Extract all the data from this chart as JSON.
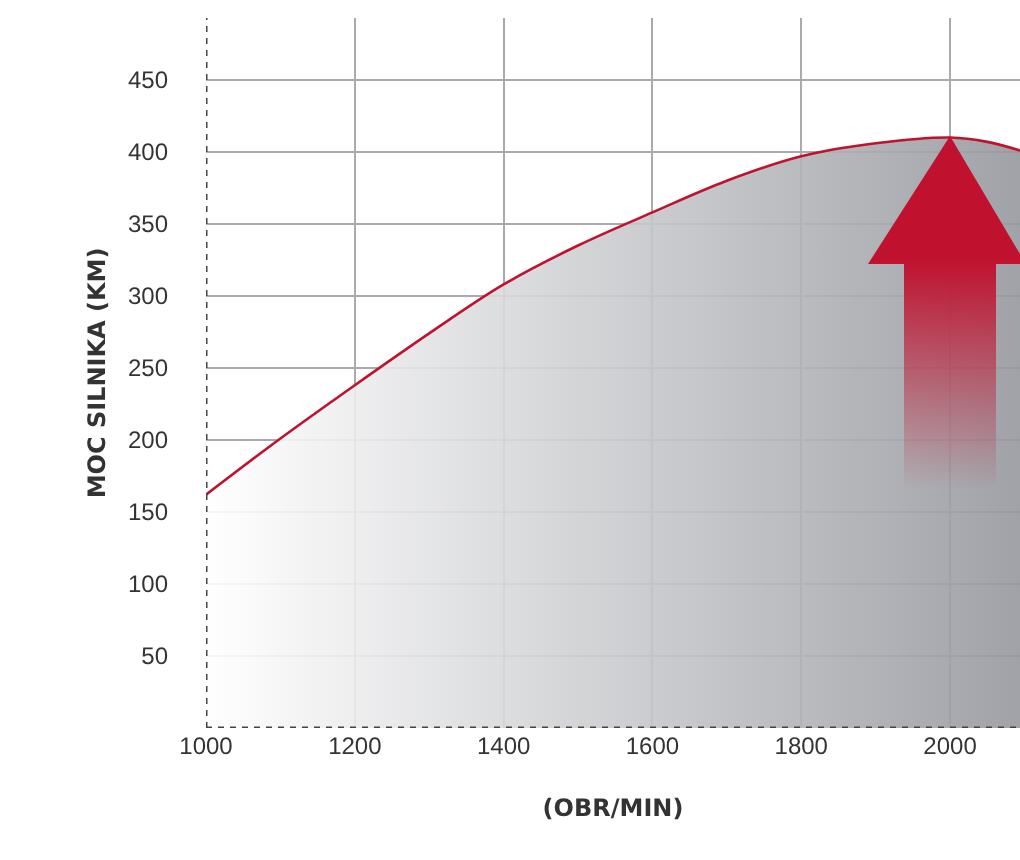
{
  "chart_data": {
    "type": "area",
    "xlabel": "(OBR/MIN)",
    "ylabel": "MOC SILNIKA (KM)",
    "x": [
      1000,
      1100,
      1200,
      1300,
      1400,
      1500,
      1600,
      1700,
      1800,
      1900,
      2000,
      2050,
      2094
    ],
    "series": [
      {
        "color": "#c0122f",
        "values": [
          162,
          201,
          238,
          274,
          308,
          335,
          358,
          380,
          397,
          406,
          410,
          407,
          401
        ]
      }
    ],
    "xlim": [
      1000,
      2094
    ],
    "ylim": [
      0,
      493
    ],
    "xticks": [
      1000,
      1200,
      1400,
      1600,
      1800,
      2000
    ],
    "yticks": [
      50,
      100,
      150,
      200,
      250,
      300,
      350,
      400,
      450
    ],
    "grid": true
  }
}
